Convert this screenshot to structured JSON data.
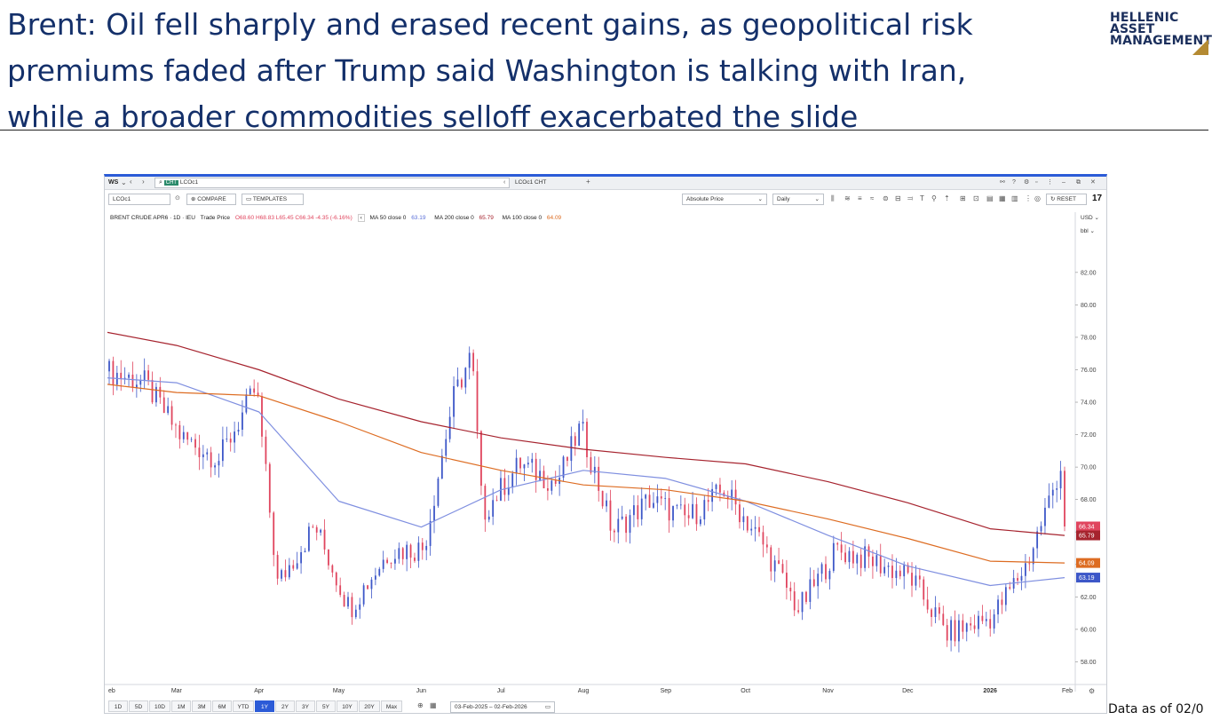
{
  "headline": {
    "line1": "Brent: Oil fell sharply and erased recent gains, as geopolitical risk",
    "line2": "premiums faded after Trump said Washington is talking with Iran,",
    "line3": "while a broader commodities selloff exacerbated the slide"
  },
  "logo": {
    "line1": "HELLENIC",
    "line2": "ASSET",
    "line3": "MANAGEMENT",
    "mark_color": "#b48a32"
  },
  "footer_note": "Data as of 02/0",
  "terminal": {
    "ws_label": "WS",
    "search_value": "LCOc1",
    "cht_badge": "CHT",
    "tab_label": "LCOc1 CHT",
    "ric_value": "LCOc1",
    "compare_label": "COMPARE",
    "templates_label": "TEMPLATES",
    "price_type": "Absolute Price",
    "interval": "Daily",
    "reset_label": "RESET",
    "tv_logo": "17",
    "currency": "USD",
    "unit": "bbl",
    "legend": {
      "instrument": "BRENT CRUDE APR6 · 1D · IEU",
      "trade_price": "Trade Price",
      "ohlc": "O68.60 H68.83 L65.45 C66.34 -4.35 (-6.16%)",
      "ma50": "MA 50 close 0",
      "ma50_val": "63.19",
      "ma200": "MA 200 close 0",
      "ma200_val": "65.79",
      "ma100": "MA 100 close 0",
      "ma100_val": "64.09"
    },
    "timeframes": [
      "1D",
      "5D",
      "10D",
      "1M",
      "3M",
      "6M",
      "YTD",
      "1Y",
      "2Y",
      "3Y",
      "5Y",
      "10Y",
      "20Y",
      "Max"
    ],
    "active_timeframe": "1Y",
    "date_range": "03-Feb-2025 – 02-Feb-2026"
  },
  "chart_data": {
    "type": "line",
    "title": "",
    "ylabel": "",
    "xlabel": "",
    "ylim": [
      56.6,
      85.0
    ],
    "yticks": [
      "58.00",
      "60.00",
      "62.00",
      "64.00",
      "66.00",
      "68.00",
      "70.00",
      "72.00",
      "74.00",
      "76.00",
      "78.00",
      "80.00",
      "82.00"
    ],
    "x_ticks": [
      "eb",
      "Mar",
      "Apr",
      "May",
      "Jun",
      "Jul",
      "Aug",
      "Sep",
      "Oct",
      "Nov",
      "Dec",
      "2026",
      "Feb"
    ],
    "colors": {
      "up": "#3d57c8",
      "down": "#e0455e",
      "ma50": "#7f8fe0",
      "ma100": "#dd6c22",
      "ma200": "#a6232e"
    },
    "series": [
      {
        "name": "MA 50 close 0",
        "x": [
          "Feb 3",
          "Mar 1",
          "Apr 1",
          "May 1",
          "Jun 1",
          "Jul 1",
          "Aug 1",
          "Sep 1",
          "Oct 1",
          "Nov 1",
          "Dec 1",
          "Jan 1",
          "Feb 2"
        ],
        "values": [
          75.5,
          75.2,
          73.4,
          67.9,
          66.3,
          68.6,
          69.8,
          69.3,
          67.9,
          65.8,
          63.9,
          62.7,
          63.19
        ]
      },
      {
        "name": "MA 100 close 0",
        "x": [
          "Feb 3",
          "Mar 1",
          "Apr 1",
          "May 1",
          "Jun 1",
          "Jul 1",
          "Aug 1",
          "Sep 1",
          "Oct 1",
          "Nov 1",
          "Dec 1",
          "Jan 1",
          "Feb 2"
        ],
        "values": [
          75.1,
          74.6,
          74.4,
          72.8,
          70.9,
          69.8,
          68.9,
          68.6,
          67.9,
          66.8,
          65.6,
          64.2,
          64.09
        ]
      },
      {
        "name": "MA 200 close 0",
        "x": [
          "Feb 3",
          "Mar 1",
          "Apr 1",
          "May 1",
          "Jun 1",
          "Jul 1",
          "Aug 1",
          "Sep 1",
          "Oct 1",
          "Nov 1",
          "Dec 1",
          "Jan 1",
          "Feb 2"
        ],
        "values": [
          78.3,
          77.5,
          76.0,
          74.2,
          72.8,
          71.8,
          71.1,
          70.6,
          70.2,
          69.1,
          67.8,
          66.2,
          65.79
        ]
      },
      {
        "name": "Trade Price (close)",
        "x": [
          "Feb 3",
          "Feb 17",
          "Mar 3",
          "Mar 17",
          "Mar 31",
          "Apr 8",
          "Apr 22",
          "May 5",
          "May 20",
          "Jun 2",
          "Jun 13",
          "Jun 20",
          "Jun 24",
          "Jul 8",
          "Jul 22",
          "Jul 31",
          "Aug 12",
          "Aug 26",
          "Sep 9",
          "Sep 23",
          "Oct 7",
          "Oct 21",
          "Nov 4",
          "Nov 18",
          "Dec 2",
          "Dec 16",
          "Jan 2",
          "Jan 15",
          "Jan 29",
          "Feb 2"
        ],
        "values": [
          75.9,
          75.2,
          71.8,
          70.5,
          74.9,
          62.8,
          66.4,
          61.3,
          64.8,
          65.0,
          74.2,
          77.0,
          67.1,
          70.2,
          69.0,
          72.5,
          66.0,
          68.0,
          66.8,
          68.6,
          65.4,
          61.2,
          64.9,
          64.2,
          63.2,
          59.7,
          60.8,
          64.1,
          70.7,
          66.34
        ]
      }
    ],
    "last_price_labels": [
      {
        "value": 66.34,
        "text": "66.34",
        "color": "#e0455e"
      },
      {
        "value": 65.79,
        "text": "65.79",
        "color": "#a6232e"
      },
      {
        "value": 64.09,
        "text": "64.09",
        "color": "#dd6c22"
      },
      {
        "value": 63.19,
        "text": "63.19",
        "color": "#3d57c8"
      }
    ]
  }
}
